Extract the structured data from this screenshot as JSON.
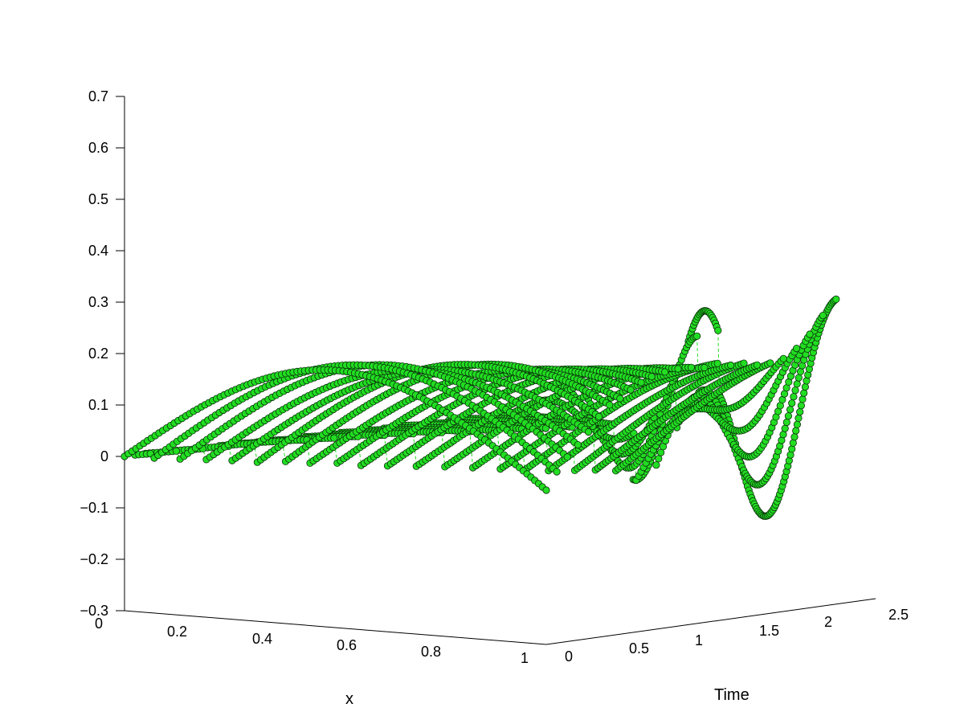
{
  "chart_data": {
    "type": "line",
    "projection": "3d",
    "title": "",
    "xlabel": "x",
    "ylabel": "Time",
    "zlabel": "",
    "x_ticks": [
      "0",
      "0.2",
      "0.4",
      "0.6",
      "0.8",
      "1"
    ],
    "time_ticks": [
      "0",
      "0.5",
      "1",
      "1.5",
      "2",
      "2.5"
    ],
    "z_ticks": [
      "−0.3",
      "−0.2",
      "−0.1",
      "0",
      "0.1",
      "0.2",
      "0.3",
      "0.4",
      "0.5",
      "0.6",
      "0.7"
    ],
    "xlim": [
      0,
      1
    ],
    "time_lim": [
      0,
      2.5
    ],
    "zlim": [
      -0.3,
      0.7
    ],
    "grid": false,
    "legend": "none",
    "marker": "circle",
    "line_style": "dashed",
    "colors": {
      "marker_fill": "#22dd22",
      "marker_edge": "#0a300a",
      "line": "#22dd22",
      "axis": "#000000"
    },
    "series": [
      {
        "time": 0.0,
        "amplitude": 0.2,
        "phase": 0.0,
        "start_x": 0.0
      },
      {
        "time": 0.08,
        "amplitude": 0.21,
        "phase": 0.05,
        "start_x": 0.0
      },
      {
        "time": 0.16,
        "amplitude": 0.21,
        "phase": 0.09,
        "start_x": 0.0
      },
      {
        "time": 0.24,
        "amplitude": 0.2,
        "phase": 0.13,
        "start_x": 0.05
      },
      {
        "time": 0.32,
        "amplitude": 0.2,
        "phase": 0.17,
        "start_x": 0.08
      },
      {
        "time": 0.4,
        "amplitude": 0.21,
        "phase": 0.21,
        "start_x": 0.1
      },
      {
        "time": 0.48,
        "amplitude": 0.21,
        "phase": 0.25,
        "start_x": 0.12
      },
      {
        "time": 0.56,
        "amplitude": 0.2,
        "phase": 0.29,
        "start_x": 0.14
      },
      {
        "time": 0.64,
        "amplitude": 0.2,
        "phase": 0.33,
        "start_x": 0.15
      },
      {
        "time": 0.72,
        "amplitude": 0.2,
        "phase": 0.37,
        "start_x": 0.17
      },
      {
        "time": 0.8,
        "amplitude": 0.2,
        "phase": 0.41,
        "start_x": 0.18
      },
      {
        "time": 0.9,
        "amplitude": 0.2,
        "phase": 0.45,
        "start_x": 0.19
      },
      {
        "time": 1.0,
        "amplitude": 0.2,
        "phase": 0.49,
        "start_x": 0.2
      },
      {
        "time": 1.1,
        "amplitude": 0.2,
        "phase": 0.53,
        "start_x": 0.22
      },
      {
        "time": 1.2,
        "amplitude": 0.2,
        "phase": 0.57,
        "start_x": 0.24
      },
      {
        "time": 1.3,
        "amplitude": 0.21,
        "phase": 0.6,
        "start_x": 0.26
      },
      {
        "time": 1.4,
        "amplitude": 0.21,
        "phase": 0.63,
        "start_x": 0.28
      },
      {
        "time": 1.5,
        "amplitude": 0.22,
        "phase": 0.66,
        "start_x": 0.3
      },
      {
        "time": 1.6,
        "amplitude": 0.22,
        "phase": 0.68,
        "start_x": 0.32
      },
      {
        "time": 1.7,
        "amplitude": 0.23,
        "phase": 0.7,
        "start_x": 0.34
      },
      {
        "time": 1.8,
        "amplitude": 0.24,
        "phase": 0.72,
        "start_x": 0.36
      },
      {
        "time": 1.9,
        "amplitude": 0.25,
        "phase": 0.74,
        "start_x": 0.4
      },
      {
        "time": 2.0,
        "amplitude": 0.26,
        "phase": 0.76,
        "start_x": 0.45
      },
      {
        "time": 2.1,
        "amplitude": 0.28,
        "phase": 0.78,
        "start_x": 0.55
      },
      {
        "time": 2.2,
        "amplitude": 0.3,
        "phase": 0.8,
        "start_x": 0.65
      }
    ]
  }
}
